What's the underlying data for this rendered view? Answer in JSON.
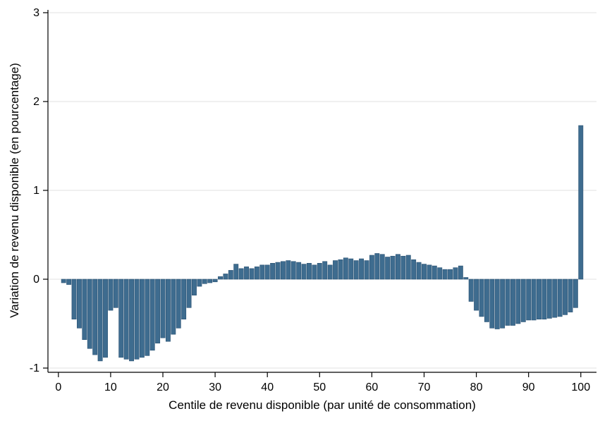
{
  "chart_data": {
    "type": "bar",
    "title": "",
    "xlabel": "Centile de revenu disponible (par unité de consommation)",
    "ylabel": "Variation de revenu disponible (en pourcentage)",
    "x_range": [
      1,
      100
    ],
    "x_ticks": [
      0,
      10,
      20,
      30,
      40,
      50,
      60,
      70,
      80,
      90,
      100
    ],
    "y_ticks": [
      -1,
      0,
      1,
      2,
      3
    ],
    "xlim": [
      -2,
      103
    ],
    "ylim": [
      -1,
      3
    ],
    "grid": true,
    "legend_position": "none",
    "bar_color": "#3e6c8f",
    "bar_edge_color": "#2b5273",
    "grid_color": "#e2e2e2",
    "axis_color": "#000000",
    "background_color": "#ffffff",
    "values": [
      -0.04,
      -0.06,
      -0.45,
      -0.55,
      -0.68,
      -0.78,
      -0.85,
      -0.92,
      -0.88,
      -0.35,
      -0.32,
      -0.88,
      -0.9,
      -0.92,
      -0.9,
      -0.88,
      -0.86,
      -0.8,
      -0.72,
      -0.66,
      -0.7,
      -0.62,
      -0.55,
      -0.45,
      -0.32,
      -0.18,
      -0.08,
      -0.05,
      -0.04,
      -0.03,
      0.03,
      0.06,
      0.1,
      0.17,
      0.12,
      0.14,
      0.12,
      0.14,
      0.16,
      0.16,
      0.18,
      0.19,
      0.2,
      0.21,
      0.2,
      0.19,
      0.17,
      0.18,
      0.16,
      0.18,
      0.2,
      0.16,
      0.21,
      0.22,
      0.24,
      0.23,
      0.21,
      0.23,
      0.21,
      0.27,
      0.29,
      0.28,
      0.25,
      0.26,
      0.28,
      0.26,
      0.27,
      0.22,
      0.19,
      0.17,
      0.16,
      0.15,
      0.13,
      0.11,
      0.11,
      0.13,
      0.15,
      0.02,
      -0.25,
      -0.35,
      -0.42,
      -0.48,
      -0.55,
      -0.56,
      -0.55,
      -0.52,
      -0.52,
      -0.5,
      -0.48,
      -0.46,
      -0.46,
      -0.45,
      -0.45,
      -0.44,
      -0.43,
      -0.42,
      -0.4,
      -0.37,
      -0.32,
      1.73
    ]
  }
}
